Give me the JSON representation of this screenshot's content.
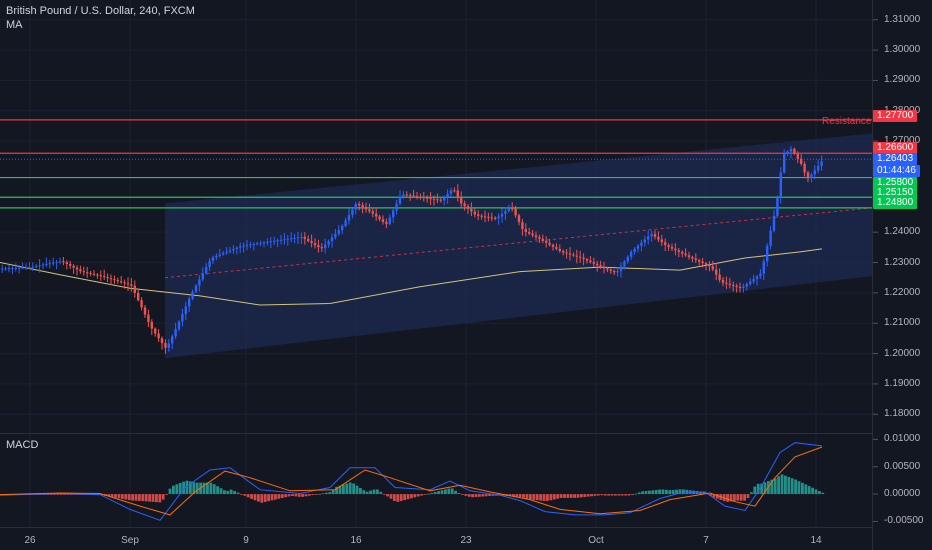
{
  "header": {
    "title": "British Pound / U.S. Dollar, 240, FXCM",
    "ma_label": "MA",
    "macd_label": "MACD"
  },
  "annotations": {
    "resistance": "Resistance"
  },
  "price_tags": [
    {
      "value": "1.27700",
      "color": "#f23645"
    },
    {
      "value": "1.26600",
      "color": "#f23645"
    },
    {
      "value": "1.26403",
      "color": "#2962ff"
    },
    {
      "value": "01:44:46",
      "color": "#2962ff"
    },
    {
      "value": "1.25800",
      "color": "#00c853"
    },
    {
      "value": "1.25150",
      "color": "#00c853"
    },
    {
      "value": "1.24800",
      "color": "#00c853"
    }
  ],
  "colors": {
    "up": "#2962ff",
    "down": "#ef5350",
    "resistance": "#f23645",
    "support": "#22c55e",
    "channel": "#1e2a52",
    "ma": "#d4c37a",
    "macd_line": "#2962ff",
    "signal_line": "#ff6d00",
    "hist_up": "#26a69a",
    "hist_down": "#ef5350"
  },
  "chart_data": {
    "type": "candlestick",
    "symbol": "GBPUSD",
    "interval": "240",
    "y_ticks": [
      "1.31000",
      "1.30000",
      "1.29000",
      "1.28000",
      "1.27000",
      "1.24000",
      "1.23000",
      "1.22000",
      "1.21000",
      "1.20000",
      "1.19000",
      "1.18000"
    ],
    "ylim": [
      1.1735,
      1.3165
    ],
    "x_ticks": [
      "26",
      "Sep",
      "9",
      "16",
      "23",
      "Oct",
      "7",
      "14"
    ],
    "horizontal_levels": [
      {
        "price": 1.277,
        "color": "resistance",
        "label": "Resistance"
      },
      {
        "price": 1.266,
        "color": "resistance"
      },
      {
        "price": 1.258,
        "color": "support"
      },
      {
        "price": 1.2515,
        "color": "support"
      },
      {
        "price": 1.248,
        "color": "support"
      }
    ],
    "current_price": 1.26403,
    "channel": {
      "start": "Sep 3",
      "end": "Oct 16",
      "upper_start": 1.2495,
      "upper_end": 1.2725,
      "lower_start": 1.1985,
      "lower_end": 1.2255
    },
    "midline": {
      "start": 1.225,
      "end": 1.248
    },
    "ma_path": [
      [
        0,
        1.23
      ],
      [
        60,
        1.226
      ],
      [
        130,
        1.2215
      ],
      [
        200,
        1.219
      ],
      [
        260,
        1.216
      ],
      [
        330,
        1.2165
      ],
      [
        420,
        1.222
      ],
      [
        520,
        1.227
      ],
      [
        600,
        1.2285
      ],
      [
        680,
        1.2275
      ],
      [
        745,
        1.2315
      ],
      [
        800,
        1.2335
      ],
      [
        822,
        1.2345
      ]
    ],
    "price_path": [
      [
        0,
        1.228
      ],
      [
        30,
        1.2285
      ],
      [
        60,
        1.2305
      ],
      [
        80,
        1.227
      ],
      [
        100,
        1.2255
      ],
      [
        130,
        1.2225
      ],
      [
        150,
        1.2085
      ],
      [
        165,
        1.2015
      ],
      [
        175,
        1.2085
      ],
      [
        190,
        1.2195
      ],
      [
        210,
        1.2315
      ],
      [
        240,
        1.2355
      ],
      [
        270,
        1.237
      ],
      [
        300,
        1.2385
      ],
      [
        320,
        1.2345
      ],
      [
        340,
        1.2415
      ],
      [
        355,
        1.2495
      ],
      [
        370,
        1.2465
      ],
      [
        385,
        1.2425
      ],
      [
        400,
        1.2525
      ],
      [
        420,
        1.2515
      ],
      [
        440,
        1.2505
      ],
      [
        452,
        1.2545
      ],
      [
        460,
        1.2495
      ],
      [
        475,
        1.2455
      ],
      [
        495,
        1.2445
      ],
      [
        510,
        1.2485
      ],
      [
        522,
        1.2405
      ],
      [
        540,
        1.2375
      ],
      [
        560,
        1.2335
      ],
      [
        580,
        1.2315
      ],
      [
        600,
        1.2285
      ],
      [
        615,
        1.2265
      ],
      [
        630,
        1.2335
      ],
      [
        650,
        1.2395
      ],
      [
        665,
        1.2355
      ],
      [
        690,
        1.2315
      ],
      [
        710,
        1.2285
      ],
      [
        720,
        1.2235
      ],
      [
        740,
        1.2215
      ],
      [
        760,
        1.2265
      ],
      [
        768,
        1.2385
      ],
      [
        775,
        1.2485
      ],
      [
        782,
        1.2655
      ],
      [
        790,
        1.2675
      ],
      [
        800,
        1.2625
      ],
      [
        806,
        1.2575
      ],
      [
        814,
        1.2605
      ],
      [
        822,
        1.264
      ]
    ],
    "macd": {
      "ylim": [
        -0.0062,
        0.0108
      ],
      "y_ticks": [
        "0.01000",
        "0.00500",
        "0.00000",
        "-0.00500"
      ],
      "macd_path": [
        [
          0,
          -0.0002
        ],
        [
          60,
          0.0001
        ],
        [
          100,
          -0.0001
        ],
        [
          130,
          -0.0028
        ],
        [
          160,
          -0.0048
        ],
        [
          185,
          0.0012
        ],
        [
          210,
          0.0044
        ],
        [
          230,
          0.0048
        ],
        [
          260,
          0.0008
        ],
        [
          300,
          0.0001
        ],
        [
          330,
          0.0012
        ],
        [
          350,
          0.0048
        ],
        [
          375,
          0.0048
        ],
        [
          395,
          0.0012
        ],
        [
          430,
          0.0008
        ],
        [
          450,
          0.0024
        ],
        [
          470,
          0.0006
        ],
        [
          500,
          -0.0002
        ],
        [
          520,
          -0.0012
        ],
        [
          545,
          -0.0032
        ],
        [
          575,
          -0.0038
        ],
        [
          605,
          -0.0038
        ],
        [
          630,
          -0.0034
        ],
        [
          660,
          -0.0008
        ],
        [
          680,
          0.0002
        ],
        [
          705,
          0.0004
        ],
        [
          725,
          -0.0022
        ],
        [
          745,
          -0.003
        ],
        [
          760,
          0.001
        ],
        [
          780,
          0.0076
        ],
        [
          795,
          0.0094
        ],
        [
          822,
          0.0088
        ]
      ],
      "signal_path": [
        [
          0,
          -0.0001
        ],
        [
          60,
          0.0002
        ],
        [
          100,
          0.0001
        ],
        [
          140,
          -0.0022
        ],
        [
          170,
          -0.0038
        ],
        [
          195,
          0.0004
        ],
        [
          225,
          0.0042
        ],
        [
          250,
          0.003
        ],
        [
          290,
          0.0006
        ],
        [
          335,
          0.0008
        ],
        [
          365,
          0.0044
        ],
        [
          390,
          0.003
        ],
        [
          430,
          0.0006
        ],
        [
          460,
          0.0016
        ],
        [
          490,
          0.0004
        ],
        [
          530,
          -0.001
        ],
        [
          560,
          -0.0028
        ],
        [
          600,
          -0.0036
        ],
        [
          640,
          -0.003
        ],
        [
          670,
          -0.001
        ],
        [
          710,
          0.0002
        ],
        [
          735,
          -0.0014
        ],
        [
          755,
          -0.0022
        ],
        [
          775,
          0.003
        ],
        [
          795,
          0.0068
        ],
        [
          822,
          0.0086
        ]
      ]
    }
  }
}
